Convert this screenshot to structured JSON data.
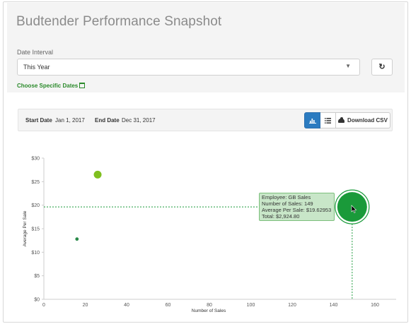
{
  "page": {
    "title": "Budtender Performance Snapshot"
  },
  "filters": {
    "date_interval_label": "Date Interval",
    "date_interval_value": "This Year",
    "choose_specific_dates": "Choose Specific Dates",
    "refresh_icon": "refresh-icon"
  },
  "toolbar": {
    "start_date_label": "Start Date",
    "start_date_value": "Jan 1, 2017",
    "end_date_label": "End Date",
    "end_date_value": "Dec 31, 2017",
    "chart_view_icon": "bar-chart-icon",
    "list_view_icon": "list-icon",
    "download_label": "Download CSV",
    "download_icon": "cloud-download-icon",
    "active_color": "#2b7bc0"
  },
  "tooltip": {
    "line1": "Employee: GB Sales",
    "line2": "Number of Sales: 149",
    "line3": "Average Per Sale: $19.62953",
    "line4": "Total: $2,924.80"
  },
  "chart_data": {
    "type": "scatter",
    "title": "",
    "xlabel": "Number of Sales",
    "ylabel": "Average Per Sale",
    "xlim": [
      0,
      160
    ],
    "ylim": [
      0,
      30
    ],
    "x_ticks": [
      "0",
      "20",
      "40",
      "60",
      "80",
      "100",
      "120",
      "140",
      "160"
    ],
    "y_ticks": [
      "$0",
      "$5",
      "$10",
      "$15",
      "$20",
      "$25",
      "$30"
    ],
    "grid": false,
    "points": [
      {
        "x": 26,
        "y": 26.5,
        "size": "medium",
        "color": "#7fbf1f"
      },
      {
        "x": 16,
        "y": 12.8,
        "size": "small",
        "color": "#2a8a4a"
      },
      {
        "x": 149,
        "y": 19.62953,
        "size": "large",
        "color": "#1a9a3a",
        "highlighted": true,
        "total": 2924.8
      }
    ]
  }
}
